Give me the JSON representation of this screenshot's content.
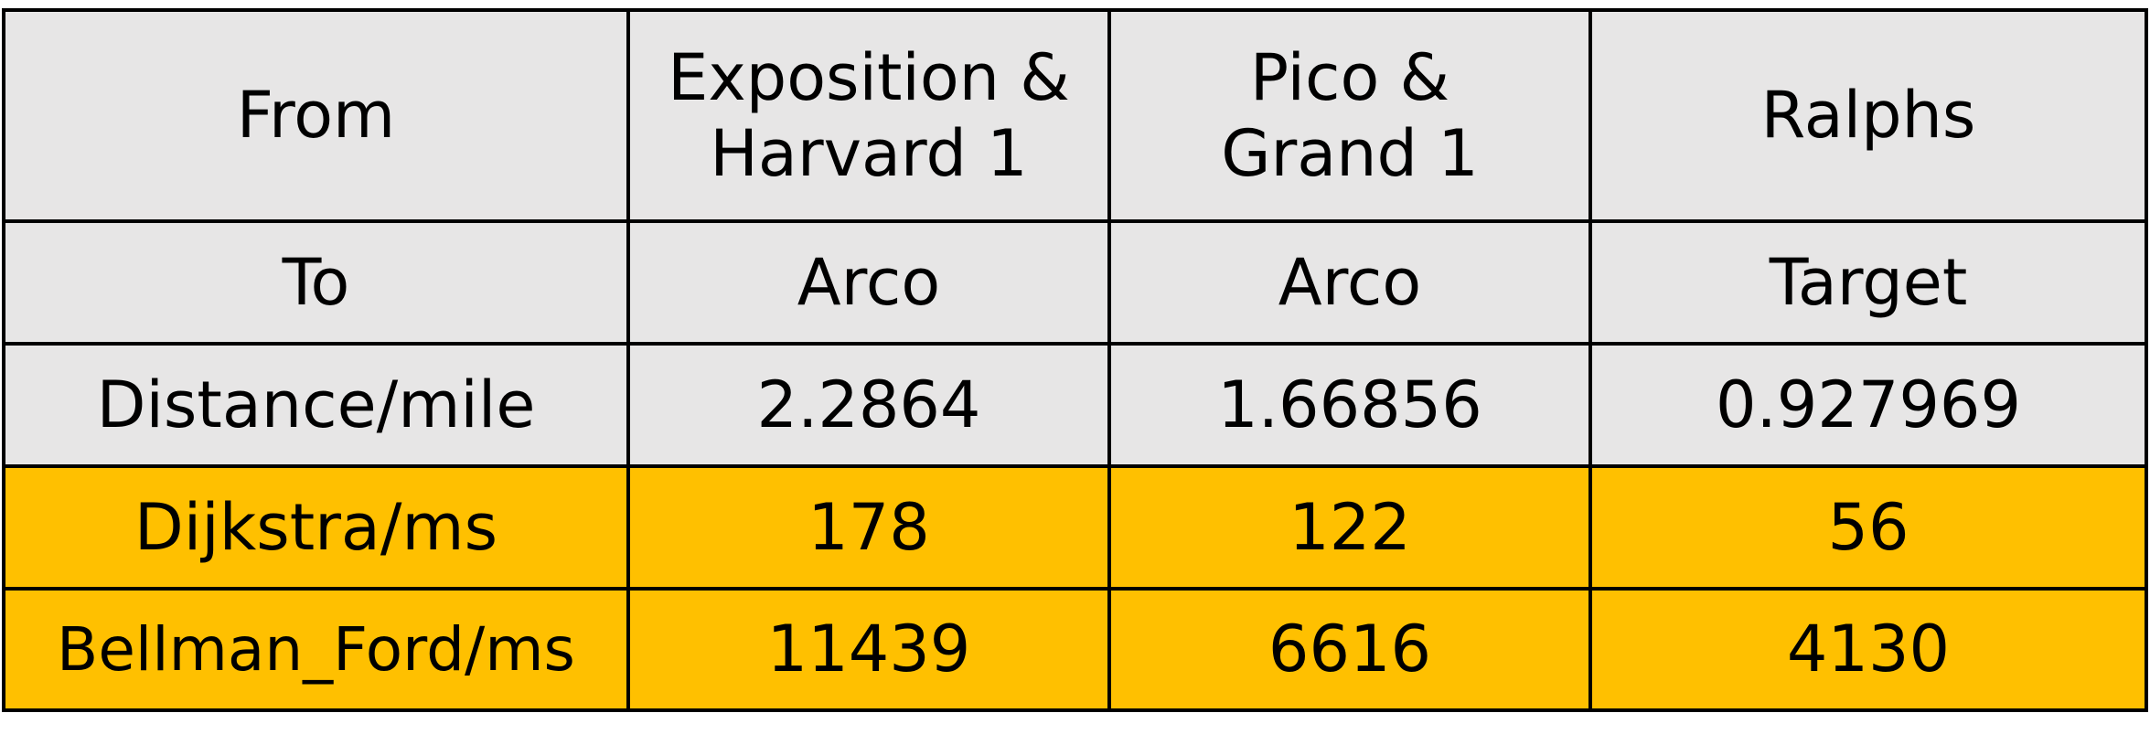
{
  "table": {
    "rows": [
      {
        "style": "gray",
        "cells": [
          "From",
          "Exposition &\nHarvard 1",
          "Pico &\nGrand 1",
          "Ralphs"
        ]
      },
      {
        "style": "gray",
        "cells": [
          "To",
          "Arco",
          "Arco",
          "Target"
        ]
      },
      {
        "style": "gray",
        "cells": [
          "Distance/mile",
          "2.2864",
          "1.66856",
          "0.927969"
        ]
      },
      {
        "style": "gold",
        "cells": [
          "Dijkstra/ms",
          "178",
          "122",
          "56"
        ]
      },
      {
        "style": "gold",
        "cells": [
          "Bellman_Ford/ms",
          "11439",
          "6616",
          "4130"
        ]
      }
    ],
    "colors": {
      "header_fill": "#e7e6e6",
      "highlight_fill": "#ffc000",
      "border": "#000000"
    }
  }
}
